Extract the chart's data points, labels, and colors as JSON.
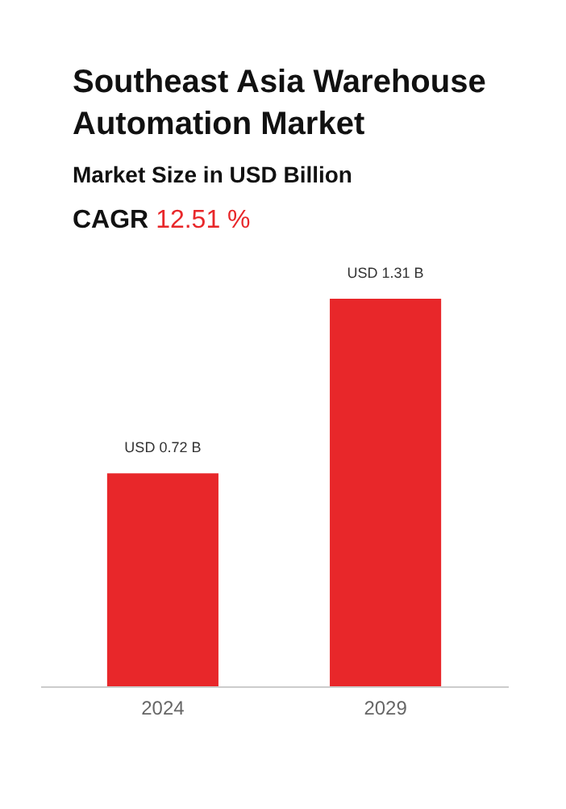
{
  "chart_data": {
    "type": "bar",
    "title": "Southeast Asia Warehouse Automation Market",
    "subtitle": "Market Size in USD Billion",
    "annotations": [
      "CAGR 12.51 %"
    ],
    "categories": [
      "2024",
      "2029"
    ],
    "values": [
      0.72,
      1.31
    ],
    "value_labels": [
      "USD 0.72 B",
      "USD 1.31 B"
    ],
    "color": "#e8272a"
  }
}
